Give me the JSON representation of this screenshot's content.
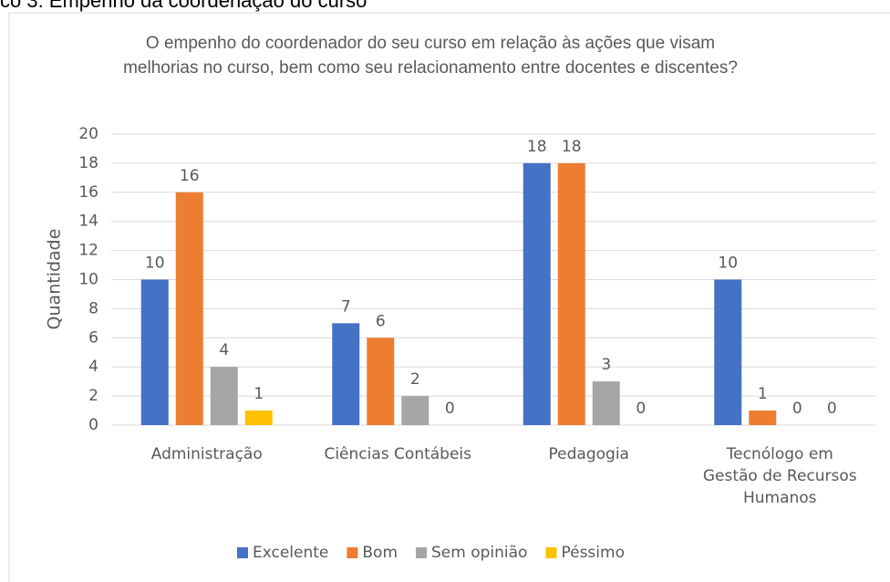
{
  "heading": "co 3. Empenho da coordenação do curso",
  "chart_data": {
    "type": "bar",
    "title": "O empenho do coordenador do seu curso em relação às ações que visam melhorias no curso, bem como seu relacionamento entre docentes e discentes?",
    "y_label": "Quantidade",
    "categories": [
      "Administração",
      "Ciências Contábeis",
      "Pedagogia",
      "Tecnólogo em Gestão de Recursos Humanos"
    ],
    "series": [
      {
        "name": "Excelente",
        "color": "#4472c4",
        "values": [
          10,
          7,
          18,
          10
        ]
      },
      {
        "name": "Bom",
        "color": "#ed7d31",
        "values": [
          16,
          6,
          18,
          1
        ]
      },
      {
        "name": "Sem opinião",
        "color": "#a5a5a5",
        "values": [
          4,
          2,
          3,
          0
        ]
      },
      {
        "name": "Péssimo",
        "color": "#ffc000",
        "values": [
          1,
          0,
          0,
          0
        ]
      }
    ],
    "ylim": [
      0,
      20
    ],
    "yticks": [
      0,
      2,
      4,
      6,
      8,
      10,
      12,
      14,
      16,
      18,
      20
    ],
    "grid": true,
    "legend": "bottom"
  }
}
